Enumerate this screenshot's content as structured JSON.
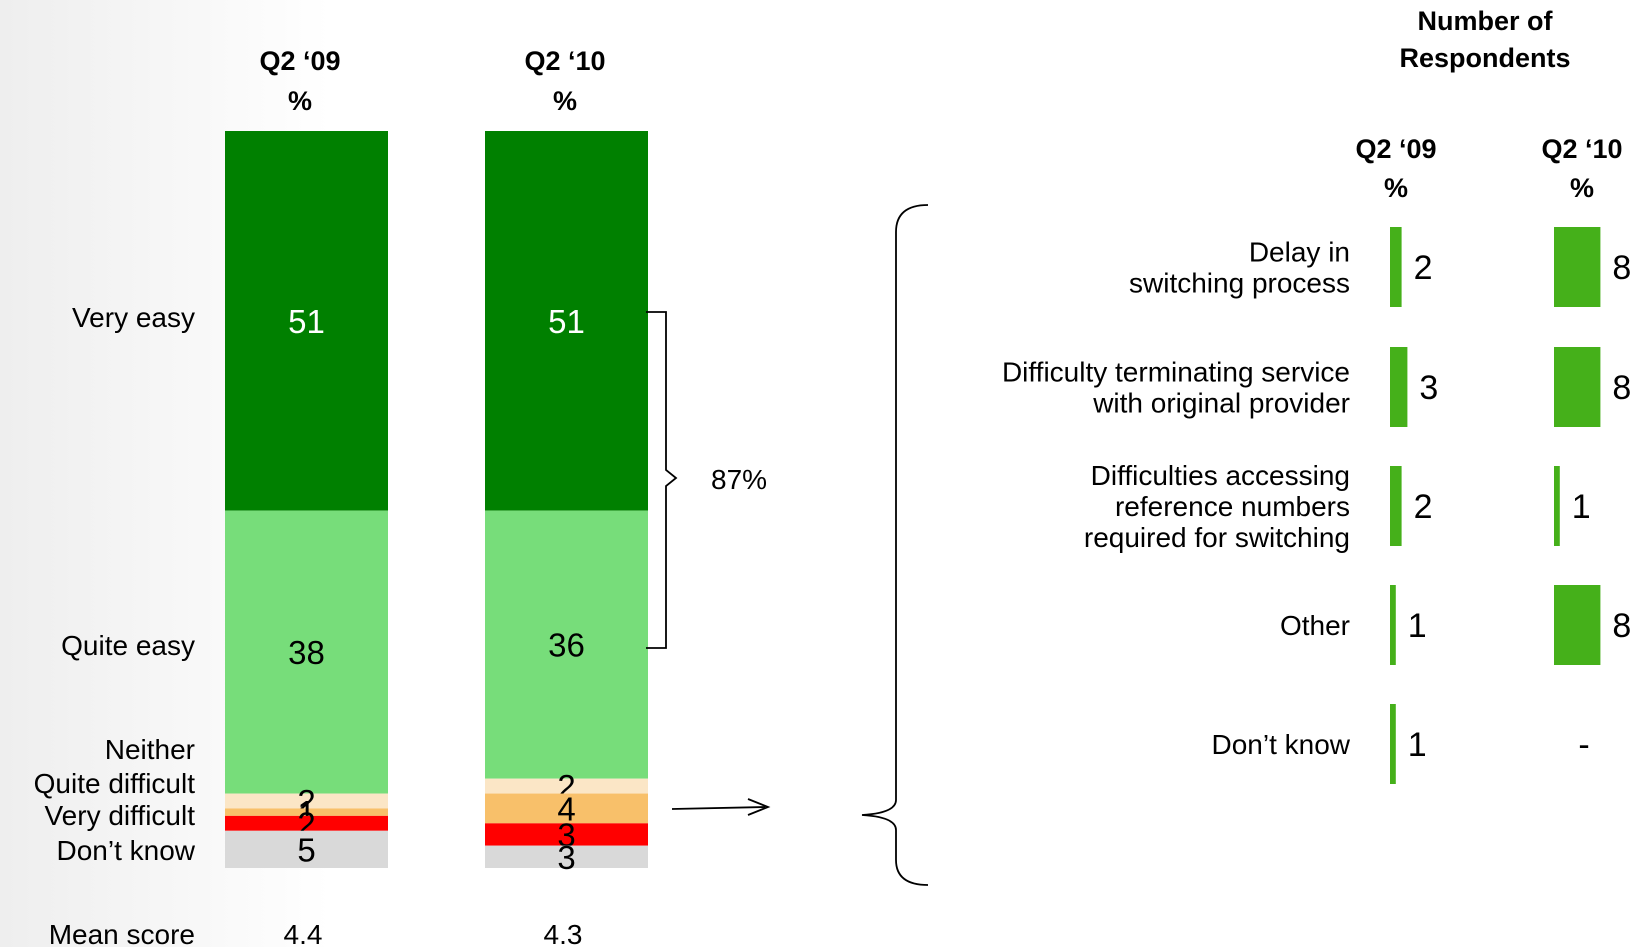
{
  "chart_data": {
    "type": "bar",
    "stacked_chart": {
      "columns": [
        {
          "label_year": "Q2 ‘09",
          "label_unit": "%"
        },
        {
          "label_year": "Q2 ‘10",
          "label_unit": "%"
        }
      ],
      "categories": [
        "Very easy",
        "Quite easy",
        "Neither",
        "Quite difficult",
        "Very difficult",
        "Don’t know"
      ],
      "series": [
        {
          "name": "Very easy",
          "color": "#008000",
          "values": [
            51,
            51
          ]
        },
        {
          "name": "Quite easy",
          "color": "#77dd7a",
          "values": [
            38,
            36
          ]
        },
        {
          "name": "Neither",
          "color": "#fbe6c6",
          "values": [
            2,
            2
          ]
        },
        {
          "name": "Quite difficult",
          "color": "#f8c06a",
          "values": [
            1,
            4
          ]
        },
        {
          "name": "Very difficult",
          "color": "#ff0000",
          "values": [
            2,
            3
          ]
        },
        {
          "name": "Don’t know",
          "color": "#d9d9d9",
          "values": [
            5,
            3
          ]
        }
      ],
      "mean_label": "Mean score",
      "mean_values": [
        "4.4",
        "4.3"
      ],
      "bracket_label": "87%"
    },
    "reasons_chart": {
      "header": [
        "Number of",
        "Respondents"
      ],
      "columns": [
        {
          "label_year": "Q2 ‘09",
          "label_unit": "%"
        },
        {
          "label_year": "Q2 ‘10",
          "label_unit": "%"
        }
      ],
      "bar_color": "#45b01a",
      "rows": [
        {
          "label": [
            "Delay in",
            "switching process"
          ],
          "values": [
            2,
            8
          ],
          "display": [
            "2",
            "8"
          ]
        },
        {
          "label": [
            "Difficulty terminating service",
            "with original provider"
          ],
          "values": [
            3,
            8
          ],
          "display": [
            "3",
            "8"
          ]
        },
        {
          "label": [
            "Difficulties accessing",
            "reference numbers",
            "required for switching"
          ],
          "values": [
            2,
            1
          ],
          "display": [
            "2",
            "1"
          ]
        },
        {
          "label": [
            "Other"
          ],
          "values": [
            1,
            8
          ],
          "display": [
            "1",
            "8"
          ]
        },
        {
          "label": [
            "Don’t know"
          ],
          "values": [
            1,
            null
          ],
          "display": [
            "1",
            "-"
          ]
        }
      ]
    }
  }
}
